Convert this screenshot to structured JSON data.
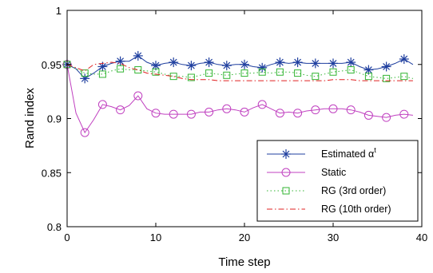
{
  "chart_data": {
    "type": "line",
    "title": "",
    "xlabel": "Time step",
    "ylabel": "Rand index",
    "xlim": [
      0,
      40
    ],
    "ylim": [
      0.8,
      1
    ],
    "xticks": [
      "0",
      "10",
      "20",
      "30",
      "40"
    ],
    "yticks": [
      "0.8",
      "0.85",
      "0.9",
      "0.95",
      "1"
    ],
    "grid": false,
    "legend_position": "bottom-right",
    "series": [
      {
        "name": "Estimated α",
        "name_superscript": "t",
        "color": "#1f3f9f",
        "line": "solid",
        "marker": "asterisk",
        "x": [
          0,
          1,
          2,
          3,
          4,
          5,
          6,
          7,
          8,
          9,
          10,
          11,
          12,
          13,
          14,
          15,
          16,
          17,
          18,
          19,
          20,
          21,
          22,
          23,
          24,
          25,
          26,
          27,
          28,
          29,
          30,
          31,
          32,
          33,
          34,
          35,
          36,
          37,
          38,
          39
        ],
        "y": [
          0.95,
          0.946,
          0.937,
          0.942,
          0.948,
          0.951,
          0.953,
          0.953,
          0.958,
          0.952,
          0.949,
          0.951,
          0.952,
          0.95,
          0.949,
          0.951,
          0.952,
          0.95,
          0.949,
          0.95,
          0.95,
          0.948,
          0.947,
          0.95,
          0.952,
          0.951,
          0.952,
          0.951,
          0.951,
          0.951,
          0.951,
          0.951,
          0.952,
          0.948,
          0.945,
          0.946,
          0.948,
          0.951,
          0.955,
          0.95
        ]
      },
      {
        "name": "Static",
        "color": "#c040c0",
        "line": "solid",
        "marker": "circle",
        "x": [
          0,
          1,
          2,
          3,
          4,
          5,
          6,
          7,
          8,
          9,
          10,
          11,
          12,
          13,
          14,
          15,
          16,
          17,
          18,
          19,
          20,
          21,
          22,
          23,
          24,
          25,
          26,
          27,
          28,
          29,
          30,
          31,
          32,
          33,
          34,
          35,
          36,
          37,
          38,
          39
        ],
        "y": [
          0.95,
          0.905,
          0.887,
          0.899,
          0.913,
          0.911,
          0.908,
          0.912,
          0.921,
          0.909,
          0.905,
          0.904,
          0.904,
          0.904,
          0.904,
          0.906,
          0.906,
          0.908,
          0.909,
          0.908,
          0.906,
          0.91,
          0.913,
          0.909,
          0.905,
          0.906,
          0.905,
          0.907,
          0.908,
          0.909,
          0.909,
          0.909,
          0.908,
          0.906,
          0.903,
          0.902,
          0.901,
          0.903,
          0.904,
          0.903
        ]
      },
      {
        "name": "RG (3rd order)",
        "color": "#33b533",
        "line": "dotted",
        "marker": "square",
        "x": [
          0,
          1,
          2,
          3,
          4,
          5,
          6,
          7,
          8,
          9,
          10,
          11,
          12,
          13,
          14,
          15,
          16,
          17,
          18,
          19,
          20,
          21,
          22,
          23,
          24,
          25,
          26,
          27,
          28,
          29,
          30,
          31,
          32,
          33,
          34,
          35,
          36,
          37,
          38,
          39
        ],
        "y": [
          0.95,
          0.946,
          0.942,
          0.941,
          0.941,
          0.944,
          0.946,
          0.945,
          0.945,
          0.944,
          0.943,
          0.941,
          0.939,
          0.939,
          0.938,
          0.94,
          0.942,
          0.941,
          0.94,
          0.941,
          0.942,
          0.942,
          0.943,
          0.942,
          0.943,
          0.943,
          0.942,
          0.94,
          0.939,
          0.941,
          0.943,
          0.944,
          0.945,
          0.942,
          0.939,
          0.938,
          0.937,
          0.938,
          0.939,
          0.937
        ]
      },
      {
        "name": "RG (10th order)",
        "color": "#e02020",
        "line": "dashdot",
        "marker": "none",
        "x": [
          0,
          1,
          2,
          3,
          4,
          5,
          6,
          7,
          8,
          9,
          10,
          11,
          12,
          13,
          14,
          15,
          16,
          17,
          18,
          19,
          20,
          21,
          22,
          23,
          24,
          25,
          26,
          27,
          28,
          29,
          30,
          31,
          32,
          33,
          34,
          35,
          36,
          37,
          38,
          39
        ],
        "y": [
          0.95,
          0.947,
          0.944,
          0.95,
          0.951,
          0.952,
          0.951,
          0.947,
          0.945,
          0.942,
          0.941,
          0.94,
          0.939,
          0.937,
          0.936,
          0.936,
          0.936,
          0.935,
          0.935,
          0.935,
          0.935,
          0.935,
          0.935,
          0.935,
          0.935,
          0.935,
          0.935,
          0.935,
          0.935,
          0.935,
          0.936,
          0.936,
          0.936,
          0.935,
          0.935,
          0.935,
          0.935,
          0.935,
          0.935,
          0.935
        ]
      }
    ]
  }
}
